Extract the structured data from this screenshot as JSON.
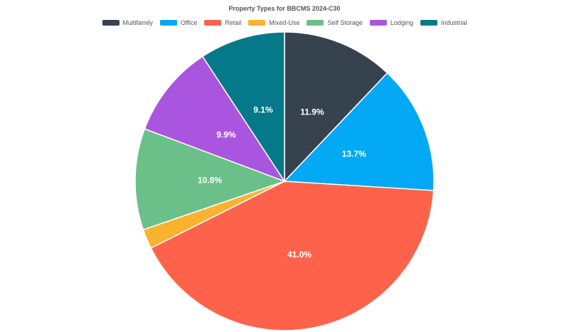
{
  "chart_data": {
    "type": "pie",
    "title": "Property Types for BBCMS 2024-C30",
    "legend_position": "top",
    "slices": [
      {
        "label": "Multifamily",
        "value": 11.9,
        "display": "11.9%",
        "color": "#37424F"
      },
      {
        "label": "Office",
        "value": 13.7,
        "display": "13.7%",
        "color": "#03A9F4"
      },
      {
        "label": "Retail",
        "value": 41.0,
        "display": "41.0%",
        "color": "#FF624B"
      },
      {
        "label": "Mixed-Use",
        "value": 2.1,
        "display": "",
        "color": "#FBB22F"
      },
      {
        "label": "Self Storage",
        "value": 10.8,
        "display": "10.8%",
        "color": "#6BC089"
      },
      {
        "label": "Lodging",
        "value": 9.9,
        "display": "9.9%",
        "color": "#AA55E0"
      },
      {
        "label": "Industrial",
        "value": 9.1,
        "display": "9.1%",
        "color": "#05798A"
      }
    ]
  }
}
